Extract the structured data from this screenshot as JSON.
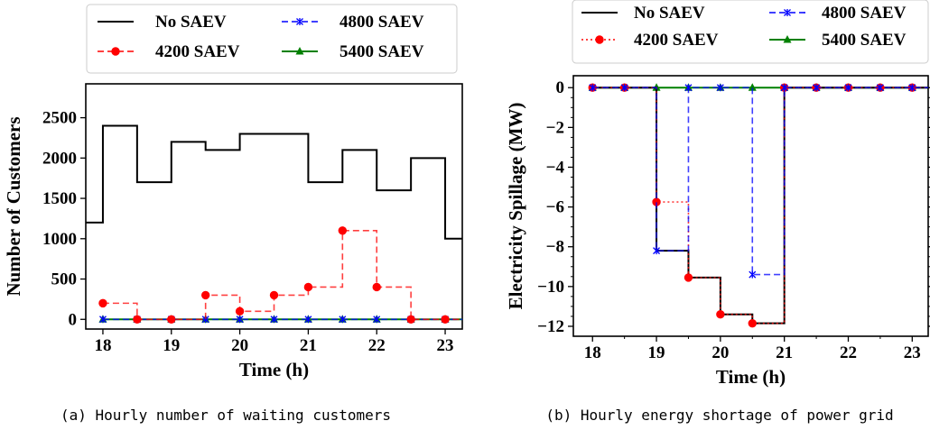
{
  "chart_data": [
    {
      "type": "line",
      "step": "post",
      "caption": "(a) Hourly number of waiting customers",
      "xlabel": "Time (h)",
      "ylabel": "Number of Customers",
      "xlim": [
        17.75,
        23.25
      ],
      "ylim": [
        -120,
        2920
      ],
      "xticks": [
        "18",
        "19",
        "20",
        "21",
        "22",
        "23"
      ],
      "yticks": [
        "0",
        "500",
        "1000",
        "1500",
        "2000",
        "2500"
      ],
      "x": [
        17.5,
        18,
        18.5,
        19,
        19.5,
        20,
        20.5,
        21,
        21.5,
        22,
        22.5,
        23
      ],
      "legend": [
        "No SAEV",
        "4200 SAEV",
        "4800 SAEV",
        "5400 SAEV"
      ],
      "series": [
        {
          "name": "No SAEV",
          "color": "#000000",
          "style": "solid",
          "marker": "none",
          "values": [
            1200,
            2400,
            1700,
            2200,
            2100,
            2300,
            2300,
            1700,
            2100,
            1600,
            2000,
            1000
          ]
        },
        {
          "name": "4200 SAEV",
          "color": "#ff0000",
          "style": "dashed",
          "marker": "circle",
          "values": [
            null,
            200,
            0,
            0,
            300,
            100,
            300,
            400,
            1100,
            400,
            0,
            0
          ]
        },
        {
          "name": "4800 SAEV",
          "color": "#0000ff",
          "style": "dashed",
          "marker": "star",
          "values": [
            null,
            0,
            0,
            0,
            0,
            0,
            0,
            0,
            0,
            0,
            0,
            0
          ]
        },
        {
          "name": "5400 SAEV",
          "color": "#008000",
          "style": "solid",
          "marker": "triangle",
          "values": [
            null,
            0,
            0,
            0,
            0,
            0,
            0,
            0,
            0,
            0,
            0,
            0
          ]
        }
      ]
    },
    {
      "type": "line",
      "step": "post",
      "caption": "(b) Hourly energy shortage of power grid",
      "xlabel": "Time (h)",
      "ylabel": "Electricity Spillage (MW)",
      "xlim": [
        17.7,
        23.25
      ],
      "ylim": [
        -12.5,
        0.6
      ],
      "xticks": [
        "18",
        "19",
        "20",
        "21",
        "22",
        "23"
      ],
      "yticks": [
        "0",
        "−2",
        "−4",
        "−6",
        "−8",
        "−10",
        "−12"
      ],
      "x": [
        18,
        18.5,
        19,
        19.5,
        20,
        20.5,
        21,
        21.5,
        22,
        22.5,
        23
      ],
      "legend": [
        "No SAEV",
        "4200 SAEV",
        "4800 SAEV",
        "5400 SAEV"
      ],
      "series": [
        {
          "name": "No SAEV",
          "color": "#000000",
          "style": "solid",
          "marker": "none",
          "values": [
            0,
            0,
            -8.2,
            -9.55,
            -11.4,
            -11.85,
            0,
            0,
            0,
            0,
            0
          ]
        },
        {
          "name": "4200 SAEV",
          "color": "#ff0000",
          "style": "dotted",
          "marker": "circle",
          "values": [
            0,
            0,
            -5.75,
            -9.55,
            -11.4,
            -11.85,
            0,
            0,
            0,
            0,
            0
          ]
        },
        {
          "name": "4800 SAEV",
          "color": "#0000ff",
          "style": "dashed",
          "marker": "star",
          "values": [
            0,
            0,
            -8.2,
            0,
            0,
            -9.4,
            0,
            0,
            0,
            0,
            0
          ]
        },
        {
          "name": "5400 SAEV",
          "color": "#008000",
          "style": "solid",
          "marker": "triangle",
          "values": [
            0,
            0,
            0,
            0,
            0,
            0,
            0,
            0,
            0,
            0,
            0
          ]
        }
      ]
    }
  ]
}
